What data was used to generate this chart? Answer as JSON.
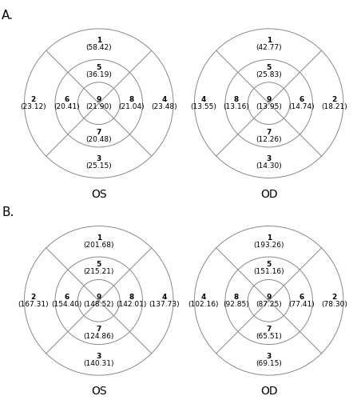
{
  "panels": {
    "A_OS": {
      "label": "OS",
      "left_outer": {
        "num": "2",
        "val": "23.12"
      },
      "left_mid": {
        "num": "6",
        "val": "20.41"
      },
      "right_mid": {
        "num": "8",
        "val": "21.04"
      },
      "right_outer": {
        "num": "4",
        "val": "23.48"
      },
      "top_outer": {
        "num": "1",
        "val": "58.42"
      },
      "top_mid": {
        "num": "5",
        "val": "36.19"
      },
      "bottom_mid": {
        "num": "7",
        "val": "20.48"
      },
      "bottom_outer": {
        "num": "3",
        "val": "25.15"
      },
      "center": {
        "num": "9",
        "val": "21.90"
      }
    },
    "A_OD": {
      "label": "OD",
      "left_outer": {
        "num": "4",
        "val": "13.55"
      },
      "left_mid": {
        "num": "8",
        "val": "13.16"
      },
      "right_mid": {
        "num": "6",
        "val": "14.74"
      },
      "right_outer": {
        "num": "2",
        "val": "18.21"
      },
      "top_outer": {
        "num": "1",
        "val": "42.77"
      },
      "top_mid": {
        "num": "5",
        "val": "25.83"
      },
      "bottom_mid": {
        "num": "7",
        "val": "12.26"
      },
      "bottom_outer": {
        "num": "3",
        "val": "14.30"
      },
      "center": {
        "num": "9",
        "val": "13.95"
      }
    },
    "B_OS": {
      "label": "OS",
      "left_outer": {
        "num": "2",
        "val": "167.31"
      },
      "left_mid": {
        "num": "6",
        "val": "154.40"
      },
      "right_mid": {
        "num": "8",
        "val": "142.01"
      },
      "right_outer": {
        "num": "4",
        "val": "137.73"
      },
      "top_outer": {
        "num": "1",
        "val": "201.68"
      },
      "top_mid": {
        "num": "5",
        "val": "215.21"
      },
      "bottom_mid": {
        "num": "7",
        "val": "124.86"
      },
      "bottom_outer": {
        "num": "3",
        "val": "140.31"
      },
      "center": {
        "num": "9",
        "val": "148.52"
      }
    },
    "B_OD": {
      "label": "OD",
      "left_outer": {
        "num": "4",
        "val": "102.16"
      },
      "left_mid": {
        "num": "8",
        "val": "92.85"
      },
      "right_mid": {
        "num": "6",
        "val": "77.41"
      },
      "right_outer": {
        "num": "2",
        "val": "78.30"
      },
      "top_outer": {
        "num": "1",
        "val": "193.26"
      },
      "top_mid": {
        "num": "5",
        "val": "151.16"
      },
      "bottom_mid": {
        "num": "7",
        "val": "65.51"
      },
      "bottom_outer": {
        "num": "3",
        "val": "69.15"
      },
      "center": {
        "num": "9",
        "val": "87.25"
      }
    }
  },
  "line_color": "#888888",
  "text_color": "#000000",
  "background_color": "#ffffff",
  "zone_fontsize": 6.5,
  "label_fontsize": 10
}
